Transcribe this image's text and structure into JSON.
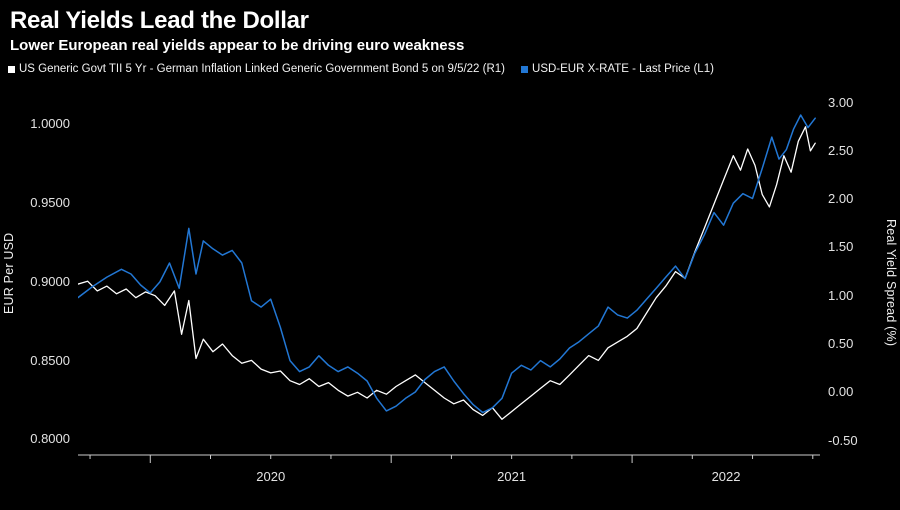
{
  "header": {
    "title": "Real Yields Lead the Dollar",
    "subtitle": "Lower European real yields appear to be driving euro weakness"
  },
  "legend": {
    "items": [
      {
        "label": "US Generic Govt TII 5 Yr - German Inflation Linked Generic Government Bond 5 on 9/5/22 (R1)",
        "color": "#ffffff",
        "marker": "square"
      },
      {
        "label": "USD-EUR X-RATE - Last Price (L1)",
        "color": "#2277d4",
        "marker": "square"
      }
    ]
  },
  "colors": {
    "background": "#000000",
    "title_text": "#ffffff",
    "tick_text": "#e2e2e2",
    "axis_line": "#cccccc",
    "white_series": "#ffffff",
    "blue_series": "#2277d4"
  },
  "chart_data": {
    "type": "line",
    "title": "Real Yields Lead the Dollar",
    "subtitle": "Lower European real yields appear to be driving euro weakness",
    "legend_position": "top-left",
    "grid": false,
    "x_domain": [
      2019.7,
      2022.78
    ],
    "x_ticks": {
      "major": [
        2020,
        2021,
        2022
      ],
      "minor_step": 0.25,
      "labels": [
        "2020",
        "2021",
        "2022"
      ],
      "label_positions": [
        2020.5,
        2021.5,
        2022.39
      ]
    },
    "axes": {
      "left": {
        "title": "EUR Per USD",
        "domain": [
          0.79,
          1.02
        ],
        "tick_values": [
          1.0,
          0.95,
          0.9,
          0.85,
          0.8
        ],
        "tick_labels": [
          "1.0000",
          "0.9500",
          "0.9000",
          "0.8500",
          "0.8000"
        ]
      },
      "right": {
        "title": "Real Yield Spread (%)",
        "domain": [
          -0.65,
          3.1
        ],
        "tick_values": [
          3.0,
          2.5,
          2.0,
          1.5,
          1.0,
          0.5,
          0.0,
          -0.5
        ],
        "tick_labels": [
          "3.00",
          "2.50",
          "2.00",
          "1.50",
          "1.00",
          "0.50",
          "0.00",
          "-0.50"
        ]
      }
    },
    "series": [
      {
        "name": "US Generic Govt TII 5 Yr - German Inflation Linked Generic Government Bond 5 on 9/5/22",
        "axis": "right",
        "unit": "%",
        "color": "#ffffff",
        "width": 1.3,
        "x": [
          2019.7,
          2019.74,
          2019.78,
          2019.82,
          2019.86,
          2019.9,
          2019.94,
          2019.98,
          2020.02,
          2020.06,
          2020.1,
          2020.13,
          2020.16,
          2020.19,
          2020.22,
          2020.26,
          2020.3,
          2020.34,
          2020.38,
          2020.42,
          2020.46,
          2020.5,
          2020.54,
          2020.58,
          2020.62,
          2020.66,
          2020.7,
          2020.74,
          2020.78,
          2020.82,
          2020.86,
          2020.9,
          2020.94,
          2020.98,
          2021.02,
          2021.06,
          2021.1,
          2021.14,
          2021.18,
          2021.22,
          2021.26,
          2021.3,
          2021.34,
          2021.38,
          2021.42,
          2021.46,
          2021.5,
          2021.54,
          2021.58,
          2021.62,
          2021.66,
          2021.7,
          2021.74,
          2021.78,
          2021.82,
          2021.86,
          2021.9,
          2021.94,
          2021.98,
          2022.02,
          2022.06,
          2022.1,
          2022.14,
          2022.18,
          2022.22,
          2022.26,
          2022.3,
          2022.34,
          2022.38,
          2022.42,
          2022.45,
          2022.48,
          2022.51,
          2022.54,
          2022.57,
          2022.6,
          2022.63,
          2022.66,
          2022.69,
          2022.72,
          2022.74,
          2022.76
        ],
        "y": [
          1.12,
          1.15,
          1.05,
          1.1,
          1.02,
          1.07,
          0.98,
          1.04,
          1.0,
          0.9,
          1.05,
          0.6,
          0.95,
          0.35,
          0.55,
          0.42,
          0.5,
          0.38,
          0.3,
          0.33,
          0.24,
          0.2,
          0.22,
          0.12,
          0.08,
          0.14,
          0.06,
          0.1,
          0.02,
          -0.04,
          0.0,
          -0.06,
          0.02,
          -0.02,
          0.06,
          0.12,
          0.18,
          0.1,
          0.02,
          -0.06,
          -0.12,
          -0.08,
          -0.18,
          -0.24,
          -0.16,
          -0.28,
          -0.2,
          -0.12,
          -0.04,
          0.04,
          0.12,
          0.08,
          0.18,
          0.28,
          0.38,
          0.33,
          0.46,
          0.52,
          0.58,
          0.66,
          0.82,
          0.98,
          1.1,
          1.25,
          1.18,
          1.45,
          1.7,
          1.95,
          2.2,
          2.45,
          2.3,
          2.52,
          2.35,
          2.05,
          1.92,
          2.15,
          2.45,
          2.28,
          2.6,
          2.75,
          2.5,
          2.58
        ]
      },
      {
        "name": "USD-EUR X-RATE - Last Price",
        "axis": "left",
        "unit": "EUR per USD",
        "color": "#2277d4",
        "width": 1.5,
        "x": [
          2019.7,
          2019.76,
          2019.82,
          2019.88,
          2019.92,
          2019.96,
          2020.0,
          2020.04,
          2020.08,
          2020.12,
          2020.16,
          2020.19,
          2020.22,
          2020.26,
          2020.3,
          2020.34,
          2020.38,
          2020.42,
          2020.46,
          2020.5,
          2020.54,
          2020.58,
          2020.62,
          2020.66,
          2020.7,
          2020.74,
          2020.78,
          2020.82,
          2020.86,
          2020.9,
          2020.94,
          2020.98,
          2021.02,
          2021.06,
          2021.1,
          2021.14,
          2021.18,
          2021.22,
          2021.26,
          2021.3,
          2021.34,
          2021.38,
          2021.42,
          2021.46,
          2021.5,
          2021.54,
          2021.58,
          2021.62,
          2021.66,
          2021.7,
          2021.74,
          2021.78,
          2021.82,
          2021.86,
          2021.9,
          2021.94,
          2021.98,
          2022.02,
          2022.06,
          2022.1,
          2022.14,
          2022.18,
          2022.22,
          2022.26,
          2022.3,
          2022.34,
          2022.38,
          2022.42,
          2022.46,
          2022.5,
          2022.54,
          2022.58,
          2022.61,
          2022.64,
          2022.67,
          2022.7,
          2022.73,
          2022.76
        ],
        "y": [
          0.89,
          0.897,
          0.903,
          0.908,
          0.905,
          0.898,
          0.893,
          0.9,
          0.912,
          0.896,
          0.934,
          0.905,
          0.926,
          0.921,
          0.917,
          0.92,
          0.912,
          0.888,
          0.884,
          0.889,
          0.871,
          0.85,
          0.843,
          0.846,
          0.853,
          0.847,
          0.843,
          0.846,
          0.842,
          0.837,
          0.826,
          0.818,
          0.821,
          0.826,
          0.83,
          0.838,
          0.843,
          0.846,
          0.837,
          0.829,
          0.822,
          0.817,
          0.82,
          0.826,
          0.842,
          0.847,
          0.844,
          0.85,
          0.846,
          0.851,
          0.858,
          0.862,
          0.867,
          0.872,
          0.884,
          0.879,
          0.877,
          0.882,
          0.889,
          0.896,
          0.903,
          0.91,
          0.902,
          0.918,
          0.93,
          0.944,
          0.936,
          0.95,
          0.956,
          0.953,
          0.972,
          0.992,
          0.978,
          0.984,
          0.997,
          1.006,
          0.998,
          1.004
        ]
      }
    ]
  }
}
